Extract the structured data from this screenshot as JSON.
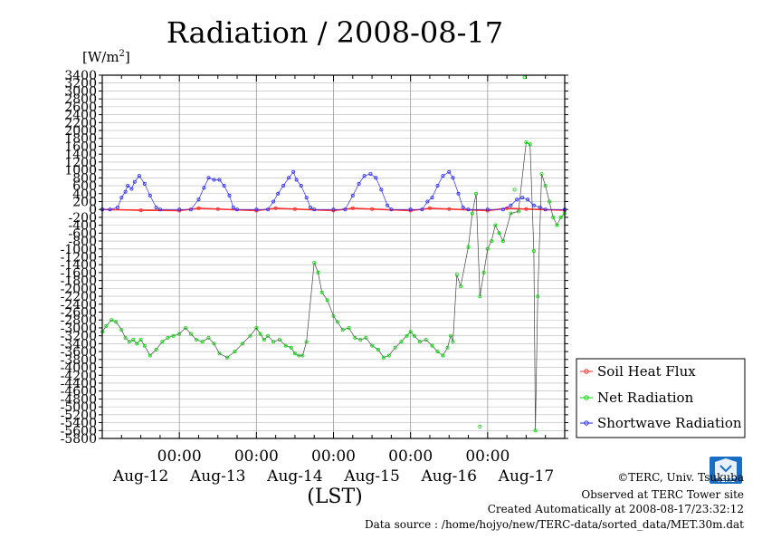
{
  "chart_data": {
    "type": "line",
    "title": "Radiation / 2008-08-17",
    "unit_label": "[W/m",
    "unit_sup": "2",
    "unit_close": "]",
    "xlabel": "(LST)",
    "x_ticks": [
      "00:00",
      "00:00",
      "00:00",
      "00:00",
      "00:00"
    ],
    "x_days": [
      "Aug-12",
      "Aug-13",
      "Aug-14",
      "Aug-15",
      "Aug-16",
      "Aug-17"
    ],
    "y_ticks": [
      "3400",
      "3200",
      "3000",
      "2800",
      "2600",
      "2400",
      "2200",
      "2000",
      "1800",
      "1600",
      "1400",
      "1200",
      "1000",
      "800",
      "600",
      "400",
      "200",
      "0",
      "-200",
      "-400",
      "-600",
      "-800",
      "-1000",
      "-1200",
      "-1400",
      "-1600",
      "-1800",
      "-2000",
      "-2200",
      "-2400",
      "-2600",
      "-2800",
      "-3000",
      "-3200",
      "-3400",
      "-3600",
      "-3800",
      "-4000",
      "-4200",
      "-4400",
      "-4600",
      "-4800",
      "-5000",
      "-5200",
      "-5400",
      "-5600",
      "-5800"
    ],
    "y_top": 3400,
    "y_step": 200,
    "y_count": 47,
    "x_range": [
      0,
      6
    ],
    "legend_position": "bottom-right",
    "grid": true,
    "series": [
      {
        "name": "Soil Heat Flux",
        "color": "#ff3030",
        "points": [
          [
            0.0,
            0
          ],
          [
            0.5,
            -20
          ],
          [
            1.0,
            -30
          ],
          [
            1.25,
            30
          ],
          [
            1.5,
            10
          ],
          [
            2.0,
            -30
          ],
          [
            2.25,
            30
          ],
          [
            2.5,
            10
          ],
          [
            3.0,
            -30
          ],
          [
            3.25,
            30
          ],
          [
            3.5,
            10
          ],
          [
            4.0,
            -30
          ],
          [
            4.25,
            30
          ],
          [
            4.5,
            10
          ],
          [
            5.0,
            -30
          ],
          [
            5.25,
            30
          ],
          [
            5.5,
            10
          ],
          [
            6.0,
            -20
          ]
        ]
      },
      {
        "name": "Net Radiation",
        "color": "#00dd00",
        "points": [
          [
            0.0,
            -3100
          ],
          [
            0.05,
            -2950
          ],
          [
            0.12,
            -2800
          ],
          [
            0.18,
            -2850
          ],
          [
            0.25,
            -3050
          ],
          [
            0.3,
            -3250
          ],
          [
            0.35,
            -3350
          ],
          [
            0.4,
            -3300
          ],
          [
            0.45,
            -3400
          ],
          [
            0.5,
            -3300
          ],
          [
            0.55,
            -3450
          ],
          [
            0.62,
            -3700
          ],
          [
            0.7,
            -3550
          ],
          [
            0.78,
            -3350
          ],
          [
            0.85,
            -3250
          ],
          [
            0.92,
            -3200
          ],
          [
            1.0,
            -3150
          ],
          [
            1.08,
            -3000
          ],
          [
            1.15,
            -3150
          ],
          [
            1.22,
            -3300
          ],
          [
            1.3,
            -3350
          ],
          [
            1.38,
            -3250
          ],
          [
            1.45,
            -3400
          ],
          [
            1.52,
            -3650
          ],
          [
            1.62,
            -3750
          ],
          [
            1.72,
            -3600
          ],
          [
            1.82,
            -3400
          ],
          [
            1.92,
            -3200
          ],
          [
            2.0,
            -3000
          ],
          [
            2.05,
            -3150
          ],
          [
            2.1,
            -3300
          ],
          [
            2.15,
            -3200
          ],
          [
            2.22,
            -3350
          ],
          [
            2.3,
            -3300
          ],
          [
            2.38,
            -3450
          ],
          [
            2.45,
            -3500
          ],
          [
            2.5,
            -3650
          ],
          [
            2.55,
            -3700
          ],
          [
            2.6,
            -3700
          ],
          [
            2.65,
            -3350
          ],
          [
            2.75,
            -1350
          ],
          [
            2.8,
            -1600
          ],
          [
            2.85,
            -2100
          ],
          [
            2.92,
            -2300
          ],
          [
            3.0,
            -2700
          ],
          [
            3.05,
            -2850
          ],
          [
            3.12,
            -3050
          ],
          [
            3.2,
            -3000
          ],
          [
            3.28,
            -3250
          ],
          [
            3.35,
            -3300
          ],
          [
            3.42,
            -3250
          ],
          [
            3.5,
            -3450
          ],
          [
            3.58,
            -3550
          ],
          [
            3.65,
            -3750
          ],
          [
            3.72,
            -3700
          ],
          [
            3.8,
            -3500
          ],
          [
            3.88,
            -3350
          ],
          [
            3.95,
            -3200
          ],
          [
            4.0,
            -3100
          ],
          [
            4.05,
            -3200
          ],
          [
            4.12,
            -3350
          ],
          [
            4.2,
            -3300
          ],
          [
            4.28,
            -3450
          ],
          [
            4.35,
            -3600
          ],
          [
            4.42,
            -3700
          ],
          [
            4.48,
            -3500
          ],
          [
            4.52,
            -3200
          ],
          [
            4.55,
            -3350
          ],
          [
            4.6,
            -1650
          ],
          [
            4.65,
            -1950
          ],
          [
            4.75,
            -950
          ],
          [
            4.8,
            -100
          ],
          [
            4.85,
            400
          ],
          [
            4.9,
            -2200
          ],
          [
            4.95,
            -1600
          ],
          [
            5.0,
            -1000
          ],
          [
            5.05,
            -800
          ],
          [
            5.1,
            -400
          ],
          [
            5.15,
            -600
          ],
          [
            5.2,
            -800
          ],
          [
            5.3,
            -100
          ],
          [
            5.4,
            -50
          ],
          [
            5.5,
            1700
          ],
          [
            5.55,
            1650
          ],
          [
            5.6,
            -1050
          ],
          [
            5.62,
            -5600
          ],
          [
            5.65,
            -2200
          ],
          [
            5.7,
            900
          ],
          [
            5.75,
            600
          ],
          [
            5.8,
            200
          ],
          [
            5.85,
            -200
          ],
          [
            5.9,
            -400
          ],
          [
            5.95,
            -200
          ],
          [
            6.0,
            -100
          ]
        ],
        "outliers": [
          [
            4.9,
            -5500
          ],
          [
            5.48,
            3350
          ],
          [
            5.35,
            500
          ]
        ]
      },
      {
        "name": "Shortwave Radiation",
        "color": "#2a2aff",
        "points": [
          [
            0.0,
            0
          ],
          [
            0.1,
            0
          ],
          [
            0.2,
            50
          ],
          [
            0.25,
            300
          ],
          [
            0.3,
            450
          ],
          [
            0.33,
            600
          ],
          [
            0.38,
            520
          ],
          [
            0.42,
            700
          ],
          [
            0.48,
            850
          ],
          [
            0.55,
            650
          ],
          [
            0.62,
            350
          ],
          [
            0.7,
            50
          ],
          [
            0.75,
            0
          ],
          [
            1.0,
            0
          ],
          [
            1.15,
            0
          ],
          [
            1.25,
            250
          ],
          [
            1.32,
            550
          ],
          [
            1.38,
            800
          ],
          [
            1.45,
            750
          ],
          [
            1.52,
            750
          ],
          [
            1.58,
            600
          ],
          [
            1.65,
            350
          ],
          [
            1.7,
            50
          ],
          [
            1.75,
            0
          ],
          [
            2.0,
            0
          ],
          [
            2.15,
            0
          ],
          [
            2.22,
            200
          ],
          [
            2.28,
            400
          ],
          [
            2.35,
            600
          ],
          [
            2.42,
            800
          ],
          [
            2.48,
            950
          ],
          [
            2.52,
            750
          ],
          [
            2.58,
            600
          ],
          [
            2.65,
            300
          ],
          [
            2.7,
            50
          ],
          [
            2.75,
            0
          ],
          [
            3.0,
            0
          ],
          [
            3.15,
            0
          ],
          [
            3.25,
            350
          ],
          [
            3.33,
            650
          ],
          [
            3.4,
            850
          ],
          [
            3.48,
            900
          ],
          [
            3.55,
            800
          ],
          [
            3.62,
            500
          ],
          [
            3.7,
            100
          ],
          [
            3.75,
            0
          ],
          [
            4.0,
            0
          ],
          [
            4.15,
            0
          ],
          [
            4.22,
            200
          ],
          [
            4.28,
            300
          ],
          [
            4.35,
            600
          ],
          [
            4.42,
            850
          ],
          [
            4.5,
            950
          ],
          [
            4.55,
            800
          ],
          [
            4.62,
            400
          ],
          [
            4.68,
            50
          ],
          [
            4.75,
            0
          ],
          [
            5.0,
            0
          ],
          [
            5.2,
            0
          ],
          [
            5.3,
            100
          ],
          [
            5.38,
            250
          ],
          [
            5.45,
            300
          ],
          [
            5.52,
            250
          ],
          [
            5.6,
            100
          ],
          [
            5.68,
            50
          ],
          [
            5.75,
            0
          ],
          [
            6.0,
            0
          ]
        ]
      }
    ]
  },
  "footer": {
    "copyright": "©TERC, Univ. Tsukuba",
    "observed": "Observed at TERC Tower site",
    "created": "Created Automatically at 2008-08-17/23:32:12",
    "source": "Data source : /home/hojyo/new/TERC-data/sorted_data/MET.30m.dat"
  },
  "logo": {
    "text": "TERC",
    "color": "#1a6fc4"
  }
}
